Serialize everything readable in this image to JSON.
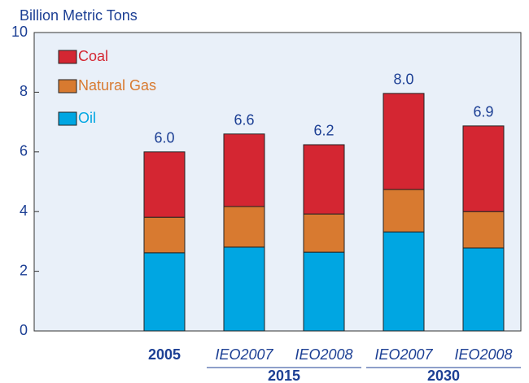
{
  "chart_data": {
    "type": "stacked_bar",
    "ylabel": "Billion Metric Tons",
    "categories": [
      null,
      "2005",
      "IEO2007",
      "IEO2008",
      "IEO2007",
      "IEO2008"
    ],
    "groups": [
      {
        "label": "2015",
        "span": [
          2,
          3
        ]
      },
      {
        "label": "2030",
        "span": [
          4,
          5
        ]
      }
    ],
    "series": [
      {
        "name": "Oil",
        "color": "#00a6e2",
        "values": [
          0,
          2.62,
          2.81,
          2.64,
          3.32,
          2.78
        ]
      },
      {
        "name": "Natural Gas",
        "color": "#d87a30",
        "values": [
          0,
          1.19,
          1.36,
          1.28,
          1.42,
          1.22
        ]
      },
      {
        "name": "Coal",
        "color": "#d42632",
        "values": [
          0,
          2.19,
          2.43,
          2.32,
          3.22,
          2.87
        ]
      }
    ],
    "total_labels": [
      null,
      "6.0",
      "6.6",
      "6.2",
      "8.0",
      "6.9"
    ],
    "ylim": [
      0,
      10
    ],
    "yticks": [
      0,
      2,
      4,
      6,
      8,
      10
    ]
  }
}
